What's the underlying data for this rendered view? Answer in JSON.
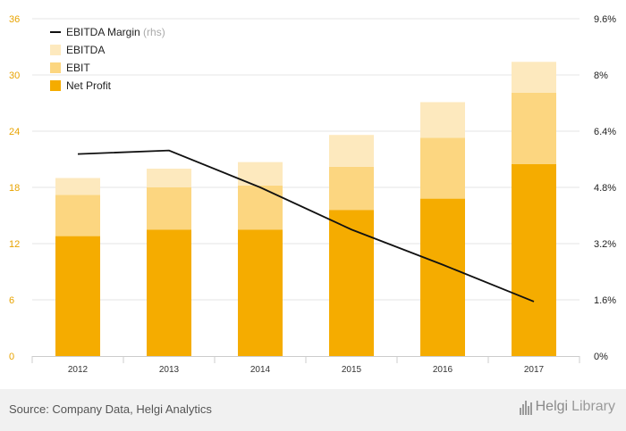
{
  "chart_data": {
    "type": "bar",
    "stacked": true,
    "categories": [
      "2012",
      "2013",
      "2014",
      "2015",
      "2016",
      "2017"
    ],
    "series": [
      {
        "name": "Net Profit",
        "values": [
          12.8,
          13.5,
          13.5,
          15.6,
          16.8,
          20.5
        ],
        "color": "#f5ac00"
      },
      {
        "name": "EBIT",
        "values": [
          4.4,
          4.5,
          4.7,
          4.6,
          6.5,
          7.6
        ],
        "color": "#fcd680"
      },
      {
        "name": "EBITDA",
        "values": [
          1.8,
          2.0,
          2.5,
          3.4,
          3.8,
          3.3
        ],
        "color": "#fde9be"
      }
    ],
    "line_series": {
      "name": "EBITDA Margin",
      "name_suffix": "(rhs)",
      "values": [
        5.75,
        5.85,
        4.8,
        3.6,
        2.6,
        1.55
      ],
      "color": "#111111"
    },
    "left_axis": {
      "ylim": [
        0,
        36
      ],
      "ticks": [
        "0",
        "6",
        "12",
        "18",
        "24",
        "30",
        "36"
      ]
    },
    "right_axis": {
      "ylim": [
        0,
        9.6
      ],
      "ticks": [
        "0%",
        "1.6%",
        "3.2%",
        "4.8%",
        "6.4%",
        "8%",
        "9.6%"
      ]
    },
    "grid": true,
    "legend_position": "top-left"
  },
  "footer": {
    "source": "Source: Company Data, Helgi Analytics",
    "logo_part1": "Helgi",
    "logo_part2": "Library",
    "logo_icon": "library-bars-icon"
  }
}
